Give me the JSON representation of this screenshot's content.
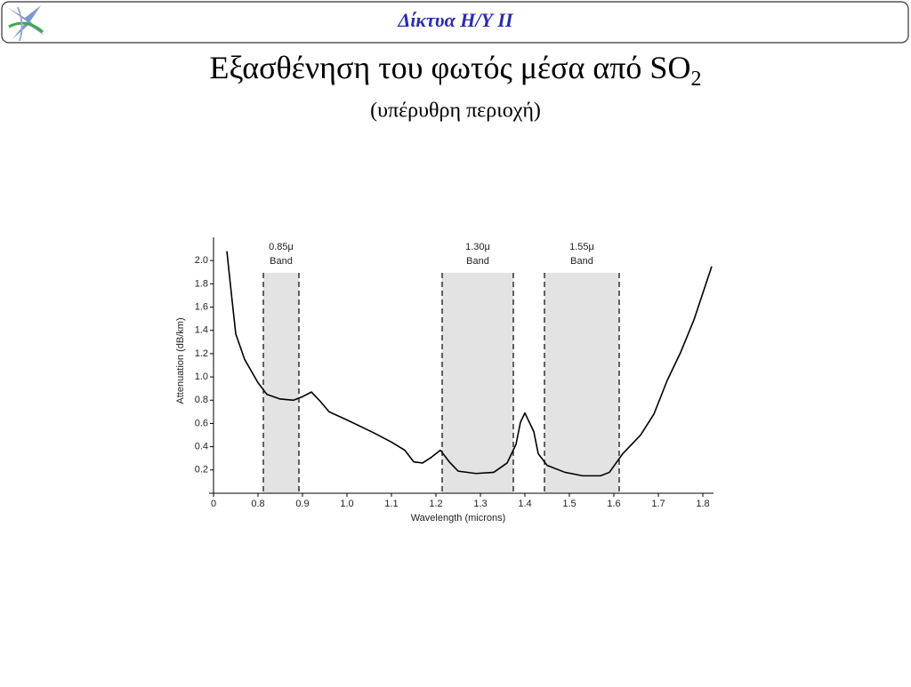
{
  "slide": {
    "header": "Δίκτυα Η/Υ ΙΙ",
    "title": "Εξασθένηση του φωτός μέσα από SO",
    "title_subscript": "2",
    "subtitle": "(υπέρυθρη περιοχή)"
  },
  "chart_data": {
    "type": "line",
    "x_label": "Wavelength (microns)",
    "y_label": "Attenuation (dB/km)",
    "xlim": [
      0,
      1.82
    ],
    "x_break": [
      0,
      0.7
    ],
    "xticks": [
      0,
      0.8,
      0.9,
      {
        "value": 1,
        "label": "1.0"
      },
      1.1,
      1.2,
      1.3,
      1.4,
      1.5,
      1.6,
      1.7,
      1.8
    ],
    "ylim": [
      0,
      2.2
    ],
    "yticks": [
      0.2,
      0.4,
      0.6,
      0.8,
      {
        "value": 1,
        "label": "1.0"
      },
      1.2,
      1.4,
      1.6,
      1.8,
      {
        "value": 2,
        "label": "2.0"
      }
    ],
    "bands": [
      {
        "lines": [
          "0.85μ",
          "Band"
        ],
        "x": [
          0.812,
          0.892
        ]
      },
      {
        "lines": [
          "1.30μ",
          "Band"
        ],
        "x": [
          1.214,
          1.374
        ]
      },
      {
        "lines": [
          "1.55μ",
          "Band"
        ],
        "x": [
          1.444,
          1.612
        ]
      }
    ],
    "band_color": "#e3e3e3",
    "series": [
      {
        "color": "#000000",
        "x": [
          0.73,
          0.74,
          0.75,
          0.77,
          0.8,
          0.82,
          0.85,
          0.88,
          0.9,
          0.92,
          0.94,
          0.96,
          1.0,
          1.06,
          1.1,
          1.13,
          1.15,
          1.17,
          1.19,
          1.21,
          1.23,
          1.25,
          1.29,
          1.33,
          1.36,
          1.38,
          1.39,
          1.4,
          1.42,
          1.43,
          1.45,
          1.49,
          1.53,
          1.57,
          1.59,
          1.62,
          1.66,
          1.69,
          1.72,
          1.75,
          1.78,
          1.82
        ],
        "values": [
          2.08,
          1.72,
          1.37,
          1.15,
          0.95,
          0.85,
          0.81,
          0.8,
          0.83,
          0.87,
          0.79,
          0.7,
          0.63,
          0.52,
          0.44,
          0.37,
          0.27,
          0.26,
          0.31,
          0.37,
          0.27,
          0.19,
          0.17,
          0.18,
          0.26,
          0.42,
          0.61,
          0.69,
          0.53,
          0.34,
          0.24,
          0.18,
          0.15,
          0.15,
          0.18,
          0.34,
          0.5,
          0.68,
          0.97,
          1.21,
          1.49,
          1.95
        ]
      }
    ]
  }
}
